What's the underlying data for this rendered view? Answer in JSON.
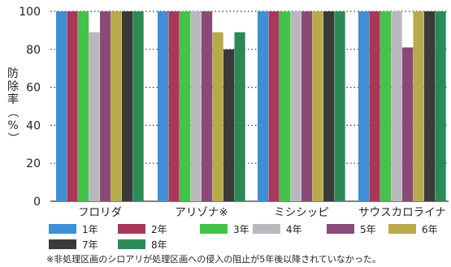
{
  "chart_data": {
    "type": "bar",
    "title": "",
    "xlabel": "",
    "ylabel": "防除率（%）",
    "ylim": [
      0,
      100
    ],
    "yticks": [
      0,
      20,
      40,
      60,
      80,
      100
    ],
    "grid": "horizontal dotted",
    "categories": [
      "フロリダ",
      "アリゾナ※",
      "ミシシッピ",
      "サウスカロライナ"
    ],
    "series": [
      {
        "name": "1年",
        "color": "#3f8fd6",
        "values": [
          100,
          100,
          100,
          100
        ]
      },
      {
        "name": "2年",
        "color": "#a8385a",
        "values": [
          100,
          100,
          100,
          100
        ]
      },
      {
        "name": "3年",
        "color": "#45c24a",
        "values": [
          100,
          100,
          100,
          100
        ]
      },
      {
        "name": "4年",
        "color": "#b9b9bd",
        "values": [
          89,
          100,
          100,
          100
        ]
      },
      {
        "name": "5年",
        "color": "#8a4a78",
        "values": [
          100,
          100,
          100,
          81
        ]
      },
      {
        "name": "6年",
        "color": "#b7aa4a",
        "values": [
          100,
          89,
          100,
          100
        ]
      },
      {
        "name": "7年",
        "color": "#3a3a3a",
        "values": [
          100,
          80,
          100,
          100
        ]
      },
      {
        "name": "8年",
        "color": "#2b8a55",
        "values": [
          100,
          89,
          100,
          100
        ]
      }
    ]
  },
  "footnote": "※非処理区画のシロアリが処理区画への侵入の阻止が5年後以降されていなかった。"
}
